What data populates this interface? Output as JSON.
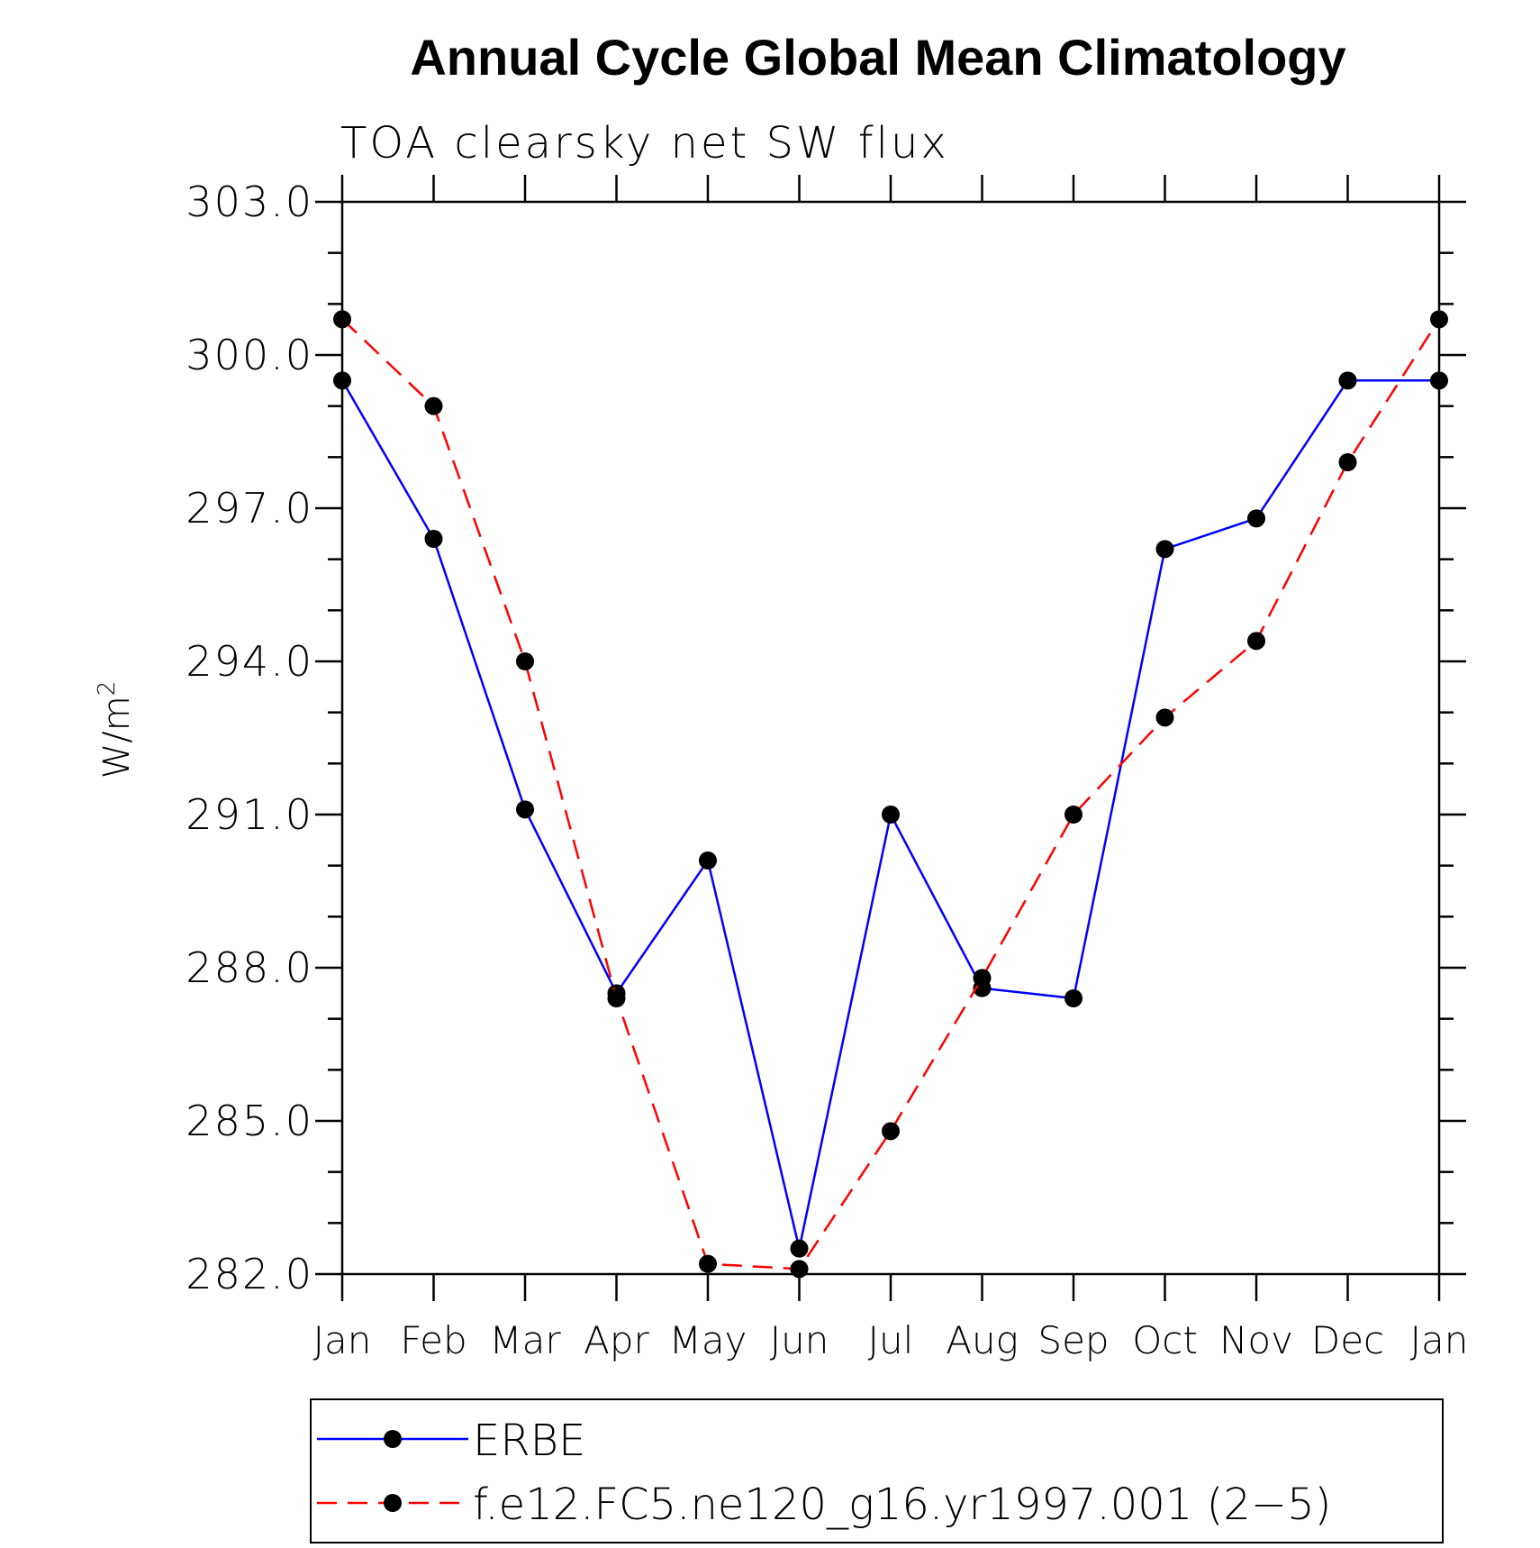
{
  "chart_data": {
    "type": "line",
    "title": "Annual Cycle Global Mean Climatology",
    "subtitle": "TOA clearsky net SW flux",
    "ylabel_base": "W/m",
    "ylabel_sup": "2",
    "xlabel": "",
    "categories": [
      "Jan",
      "Feb",
      "Mar",
      "Apr",
      "May",
      "Jun",
      "Jul",
      "Aug",
      "Sep",
      "Oct",
      "Nov",
      "Dec",
      "Jan"
    ],
    "ylim": [
      282,
      303
    ],
    "yticks": [
      282,
      285,
      288,
      291,
      294,
      297,
      300,
      303
    ],
    "ytick_labels": [
      "282.0",
      "285.0",
      "288.0",
      "291.0",
      "294.0",
      "297.0",
      "300.0",
      "303.0"
    ],
    "grid": false,
    "legend_position": "bottom",
    "series": [
      {
        "name": "ERBE",
        "color": "#0000ff",
        "dash": "solid",
        "marker": "filled-circle",
        "values": [
          299.5,
          296.4,
          291.1,
          287.5,
          290.1,
          282.5,
          291.0,
          287.6,
          287.4,
          296.2,
          296.8,
          299.5,
          299.5
        ]
      },
      {
        "name": "f.e12.FC5.ne120_g16.yr1997.001 (2−5)",
        "color": "#ff0000",
        "dash": "dashed",
        "marker": "filled-circle",
        "values": [
          300.7,
          299.0,
          294.0,
          287.4,
          282.2,
          282.1,
          284.8,
          287.8,
          291.0,
          292.9,
          294.4,
          297.9,
          300.7
        ]
      }
    ]
  }
}
